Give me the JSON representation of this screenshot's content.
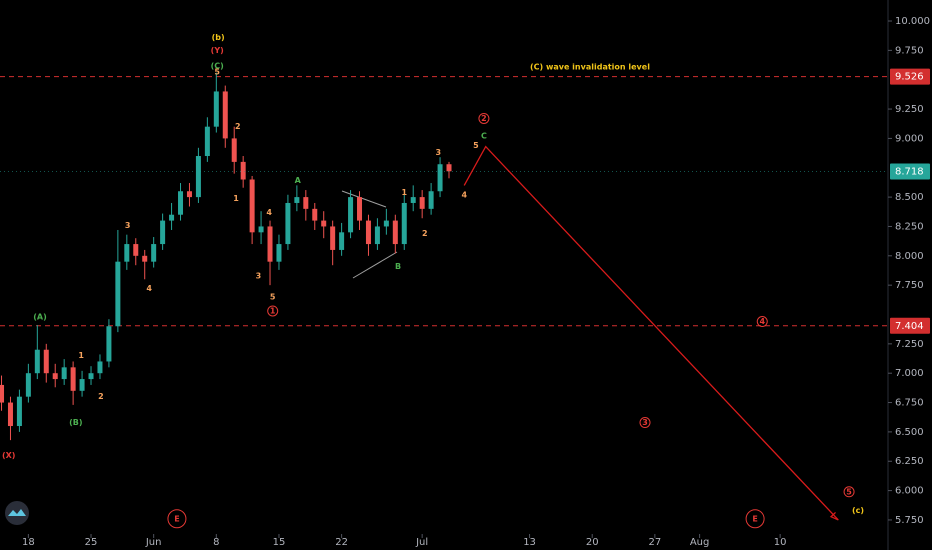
{
  "chart_data": {
    "type": "candlestick",
    "up_color": "#26a69a",
    "down_color": "#ef5350",
    "x": [
      15,
      16,
      17,
      18,
      19,
      20,
      21,
      22,
      23,
      24,
      25,
      26,
      27,
      28,
      29,
      30,
      31,
      32,
      33,
      34,
      35,
      36,
      37,
      38,
      39,
      40,
      41,
      42,
      43,
      44,
      45,
      46,
      47,
      48,
      49,
      50,
      51,
      52,
      53,
      54,
      55,
      56,
      57,
      58,
      59,
      60,
      61,
      62,
      63,
      64,
      65
    ],
    "open": [
      6.9,
      6.75,
      6.55,
      6.8,
      7.0,
      7.2,
      7.0,
      6.95,
      7.05,
      6.85,
      6.95,
      7.0,
      7.1,
      7.4,
      7.95,
      8.1,
      8.0,
      7.95,
      8.1,
      8.3,
      8.35,
      8.55,
      8.5,
      8.85,
      9.1,
      9.4,
      9.0,
      8.8,
      8.65,
      8.2,
      8.25,
      7.95,
      8.1,
      8.45,
      8.5,
      8.4,
      8.3,
      8.25,
      8.05,
      8.2,
      8.5,
      8.3,
      8.1,
      8.25,
      8.3,
      8.1,
      8.45,
      8.5,
      8.4,
      8.55,
      8.78
    ],
    "high": [
      6.98,
      6.8,
      6.86,
      7.08,
      7.41,
      7.25,
      7.08,
      7.12,
      7.1,
      7.02,
      7.06,
      7.16,
      7.46,
      8.22,
      8.18,
      8.15,
      8.05,
      8.16,
      8.36,
      8.45,
      8.62,
      8.62,
      8.92,
      9.18,
      9.56,
      9.45,
      9.1,
      8.85,
      8.68,
      8.38,
      8.3,
      8.18,
      8.52,
      8.6,
      8.56,
      8.45,
      8.38,
      8.3,
      8.28,
      8.56,
      8.55,
      8.35,
      8.32,
      8.4,
      8.35,
      8.52,
      8.6,
      8.56,
      8.62,
      8.84,
      8.8
    ],
    "low": [
      6.68,
      6.43,
      6.5,
      6.75,
      6.95,
      6.92,
      6.88,
      6.9,
      6.73,
      6.8,
      6.9,
      6.95,
      7.05,
      7.35,
      7.88,
      7.92,
      7.8,
      7.9,
      8.05,
      8.22,
      8.3,
      8.42,
      8.45,
      8.8,
      9.05,
      8.92,
      8.7,
      8.58,
      8.1,
      8.1,
      7.75,
      7.88,
      8.05,
      8.38,
      8.3,
      8.22,
      8.15,
      7.92,
      8.0,
      8.15,
      8.22,
      8.0,
      8.05,
      8.18,
      8.02,
      8.05,
      8.38,
      8.32,
      8.35,
      8.5,
      8.66
    ],
    "close": [
      6.75,
      6.55,
      6.8,
      7.0,
      7.2,
      7.0,
      6.95,
      7.05,
      6.85,
      6.95,
      7.0,
      7.1,
      7.4,
      7.95,
      8.1,
      8.0,
      7.95,
      8.1,
      8.3,
      8.35,
      8.55,
      8.5,
      8.85,
      9.1,
      9.4,
      9.0,
      8.8,
      8.65,
      8.2,
      8.25,
      7.95,
      8.1,
      8.45,
      8.5,
      8.4,
      8.3,
      8.25,
      8.05,
      8.2,
      8.5,
      8.3,
      8.1,
      8.25,
      8.3,
      8.1,
      8.45,
      8.5,
      8.4,
      8.55,
      8.78,
      8.72
    ],
    "xlim": [
      14.83,
      114.05
    ],
    "ylim": [
      5.494,
      10.179
    ],
    "yticks": [
      {
        "value": 10,
        "label": "10.000"
      },
      {
        "value": 9.75,
        "label": "9.750"
      },
      {
        "value": 9.25,
        "label": "9.250"
      },
      {
        "value": 9,
        "label": "9.000"
      },
      {
        "value": 8.5,
        "label": "8.500"
      },
      {
        "value": 8.25,
        "label": "8.250"
      },
      {
        "value": 8,
        "label": "8.000"
      },
      {
        "value": 7.75,
        "label": "7.750"
      },
      {
        "value": 7.25,
        "label": "7.250"
      },
      {
        "value": 7,
        "label": "7.000"
      },
      {
        "value": 6.75,
        "label": "6.750"
      },
      {
        "value": 6.5,
        "label": "6.500"
      },
      {
        "value": 6.25,
        "label": "6.250"
      },
      {
        "value": 6,
        "label": "6.000"
      },
      {
        "value": 5.75,
        "label": "5.750"
      }
    ],
    "xticks": [
      18,
      25,
      {
        "value": 32,
        "label": "Jun"
      },
      {
        "value": 39,
        "label": "8"
      },
      {
        "value": 46,
        "label": "15"
      },
      {
        "value": 53,
        "label": "22"
      },
      {
        "value": 62,
        "label": "Jul"
      },
      {
        "value": 74,
        "label": "13"
      },
      {
        "value": 81,
        "label": "20"
      },
      {
        "value": 88,
        "label": "27"
      },
      {
        "value": 93,
        "label": "Aug"
      },
      {
        "value": 102,
        "label": "10"
      }
    ],
    "grid": false,
    "hlines": [
      9.526,
      7.404
    ],
    "hline_color": "#d32f2f",
    "last_price": 8.718,
    "last_price_color": "#26a69a",
    "projection": {
      "x": [
        66.7,
        69.1,
        108.5
      ],
      "values": [
        8.6,
        8.93,
        5.75
      ],
      "color": "#d81b1b"
    },
    "annotations": [
      {
        "text": "(b)",
        "x": 39.2,
        "y": 9.86,
        "color": "#f0c419",
        "size": 11
      },
      {
        "text": "(Y)",
        "x": 39.1,
        "y": 9.75,
        "color": "#e53935"
      },
      {
        "text": "(C)",
        "x": 39.1,
        "y": 9.617,
        "color": "#4caf50"
      },
      {
        "text": "5",
        "x": 39.1,
        "y": 9.566,
        "color": "#f5a25d"
      },
      {
        "text": "2",
        "x": 41.4,
        "y": 9.1,
        "color": "#f5a25d"
      },
      {
        "text": "1",
        "x": 41.2,
        "y": 8.49,
        "color": "#f5a25d"
      },
      {
        "text": "3",
        "x": 29.1,
        "y": 8.26,
        "color": "#f5a25d"
      },
      {
        "text": "4",
        "x": 31.5,
        "y": 7.72,
        "color": "#f5a25d"
      },
      {
        "text": "(A)",
        "x": 19.3,
        "y": 7.48,
        "color": "#4caf50"
      },
      {
        "text": "1",
        "x": 23.9,
        "y": 7.15,
        "color": "#f5a25d"
      },
      {
        "text": "2",
        "x": 26.1,
        "y": 6.8,
        "color": "#f5a25d"
      },
      {
        "text": "(B)",
        "x": 23.3,
        "y": 6.58,
        "color": "#4caf50"
      },
      {
        "text": "(X)",
        "x": 15.8,
        "y": 6.3,
        "color": "#e53935"
      },
      {
        "text": "4",
        "x": 44.9,
        "y": 8.37,
        "color": "#f5a25d"
      },
      {
        "text": "3",
        "x": 43.7,
        "y": 7.83,
        "color": "#f5a25d"
      },
      {
        "text": "5",
        "x": 45.3,
        "y": 7.65,
        "color": "#f5a25d"
      },
      {
        "text": "1",
        "x": 45.3,
        "y": 7.53,
        "color": "#e53935",
        "circled": true
      },
      {
        "text": "A",
        "x": 48.1,
        "y": 8.64,
        "color": "#4caf50"
      },
      {
        "text": "B",
        "x": 59.3,
        "y": 7.91,
        "color": "#4caf50"
      },
      {
        "text": "1",
        "x": 60.0,
        "y": 8.54,
        "color": "#f5a25d"
      },
      {
        "text": "2",
        "x": 62.3,
        "y": 8.19,
        "color": "#f5a25d"
      },
      {
        "text": "3",
        "x": 63.8,
        "y": 8.88,
        "color": "#f5a25d"
      },
      {
        "text": "4",
        "x": 66.7,
        "y": 8.52,
        "color": "#f5a25d"
      },
      {
        "text": "5",
        "x": 68.0,
        "y": 8.94,
        "color": "#f5a25d"
      },
      {
        "text": "C",
        "x": 68.9,
        "y": 9.02,
        "color": "#4caf50"
      },
      {
        "text": "2",
        "x": 68.9,
        "y": 9.17,
        "color": "#e53935",
        "circled": true
      },
      {
        "text": "4",
        "x": 100.0,
        "y": 7.44,
        "color": "#e53935",
        "circled": true
      },
      {
        "text": "3",
        "x": 86.9,
        "y": 6.58,
        "color": "#e53935",
        "circled": true
      },
      {
        "text": "5",
        "x": 109.7,
        "y": 5.99,
        "color": "#e53935",
        "circled": true
      },
      {
        "text": "(c)",
        "x": 110.7,
        "y": 5.83,
        "color": "#f0c419",
        "size": 11
      },
      {
        "text": "(C) wave invalidation level",
        "x": 80.75,
        "y": 9.61,
        "color": "#f0c419"
      },
      {
        "text": "E",
        "x": 34.6,
        "y": 5.76,
        "color": "#e53935",
        "circled": true,
        "big": true
      },
      {
        "text": "E",
        "x": 99.2,
        "y": 5.76,
        "color": "#e53935",
        "circled": true,
        "big": true
      }
    ]
  }
}
